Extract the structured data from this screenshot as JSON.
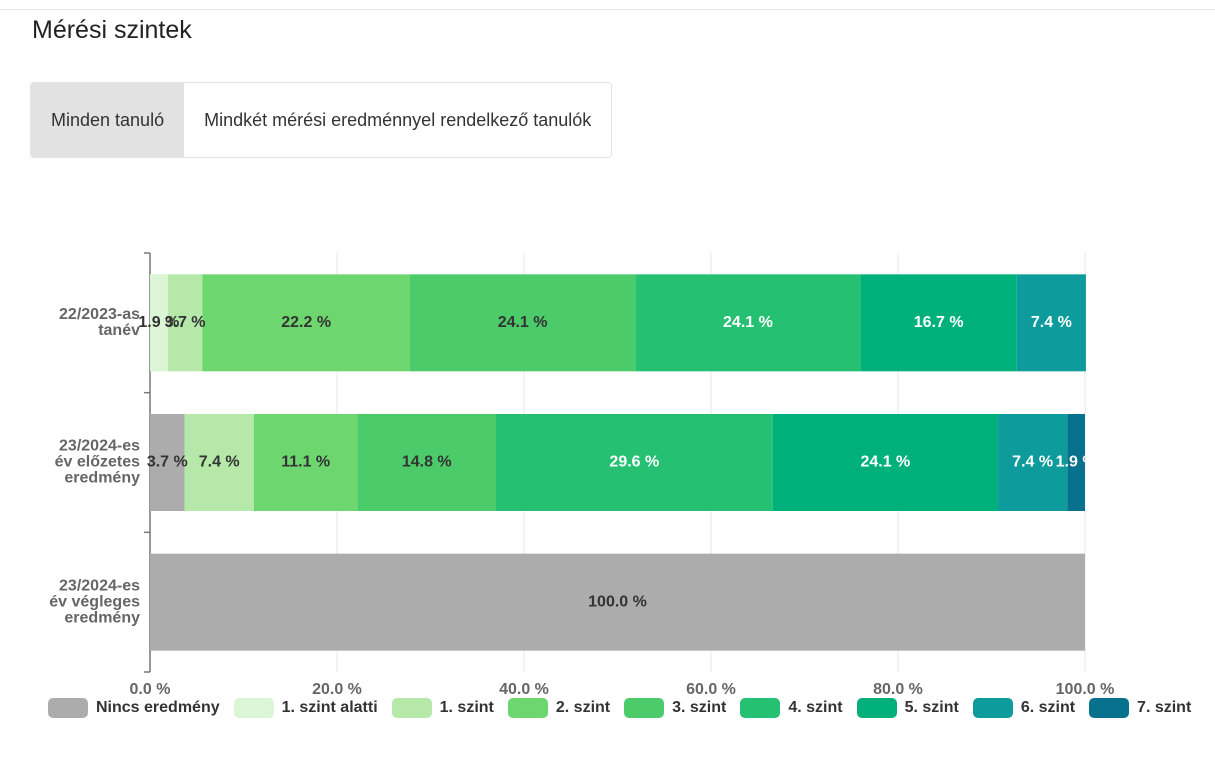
{
  "title": "Mérési szintek",
  "tabs": [
    "Minden tanuló",
    "Mindkét mérési eredménnyel rendelkező tanulók"
  ],
  "chart_data": {
    "type": "stacked_bar_horizontal",
    "categories": [
      [
        "22/2023-as",
        "tanév"
      ],
      [
        "23/2024-es",
        "év előzetes",
        "eredmény"
      ],
      [
        "23/2024-es",
        "év végleges",
        "eredmény"
      ]
    ],
    "series": [
      {
        "name": "Nincs eredmény",
        "color": "#acacac",
        "values": [
          0,
          3.7,
          100
        ],
        "value_labels": [
          null,
          "3.7 %",
          "100.0 %"
        ]
      },
      {
        "name": "1. szint alatti",
        "color": "#dcf5d6",
        "values": [
          1.9,
          0,
          0
        ],
        "value_labels": [
          "1.9 %",
          null,
          null
        ]
      },
      {
        "name": "1. szint",
        "color": "#b6e9a9",
        "values": [
          3.7,
          7.4,
          0
        ],
        "value_labels": [
          "3.7 %",
          "7.4 %",
          null
        ]
      },
      {
        "name": "2. szint",
        "color": "#6ed66f",
        "values": [
          22.2,
          11.1,
          0
        ],
        "value_labels": [
          "22.2 %",
          "11.1 %",
          null
        ]
      },
      {
        "name": "3. szint",
        "color": "#4bcb69",
        "values": [
          24.1,
          14.8,
          0
        ],
        "value_labels": [
          "24.1 %",
          "14.8 %",
          null
        ]
      },
      {
        "name": "4. szint",
        "color": "#25c072",
        "values": [
          24.1,
          29.6,
          0
        ],
        "value_labels": [
          "24.1 %",
          "29.6 %",
          null
        ]
      },
      {
        "name": "5. szint",
        "color": "#00b07b",
        "values": [
          16.7,
          24.1,
          0
        ],
        "value_labels": [
          "16.7 %",
          "24.1 %",
          null
        ]
      },
      {
        "name": "6. szint",
        "color": "#0e9b9c",
        "values": [
          7.4,
          7.4,
          0
        ],
        "value_labels": [
          "7.4 %",
          "7.4 %",
          null
        ]
      },
      {
        "name": "7. szint",
        "color": "#08728e",
        "values": [
          0,
          1.9,
          0
        ],
        "value_labels": [
          null,
          "1.9 %",
          null
        ]
      }
    ],
    "xlim": [
      0,
      100
    ],
    "xticks": [
      {
        "value": 0,
        "label": "0.0 %"
      },
      {
        "value": 20,
        "label": "20.0 %"
      },
      {
        "value": 40,
        "label": "40.0 %"
      },
      {
        "value": 60,
        "label": "60.0 %"
      },
      {
        "value": 80,
        "label": "80.0 %"
      },
      {
        "value": 100,
        "label": "100.0 %"
      }
    ],
    "grid": true
  }
}
